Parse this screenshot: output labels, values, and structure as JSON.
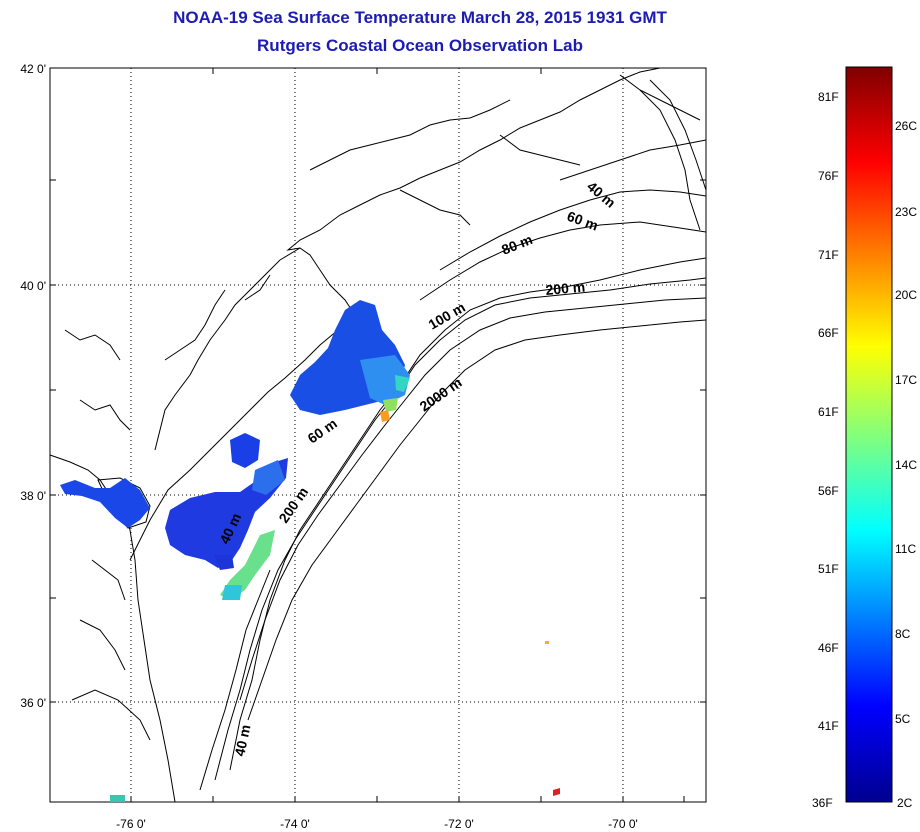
{
  "header": {
    "title": "NOAA-19 Sea Surface Temperature March 28, 2015 1931 GMT",
    "subtitle": "Rutgers Coastal Ocean Observation Lab"
  },
  "map": {
    "lat_labels": [
      "42 0'",
      "40 0'",
      "38 0'",
      "36 0'"
    ],
    "lon_labels": [
      "-76 0'",
      "-74 0'",
      "-72 0'",
      "-70 0'"
    ],
    "contour_labels": [
      "40 m",
      "60 m",
      "80 m",
      "200 m",
      "100 m",
      "2000 m",
      "60 m",
      "200 m",
      "40 m",
      "40 m"
    ]
  },
  "colorbar": {
    "fahrenheit_labels": [
      "81F",
      "76F",
      "71F",
      "66F",
      "61F",
      "56F",
      "51F",
      "46F",
      "41F",
      "36F"
    ],
    "celsius_labels": [
      "26C",
      "23C",
      "20C",
      "17C",
      "14C",
      "11C",
      "8C",
      "5C",
      "2C"
    ],
    "colormap": [
      "#00008f",
      "#0000ff",
      "#00ffff",
      "#ffff00",
      "#ff0000",
      "#800000"
    ]
  }
}
